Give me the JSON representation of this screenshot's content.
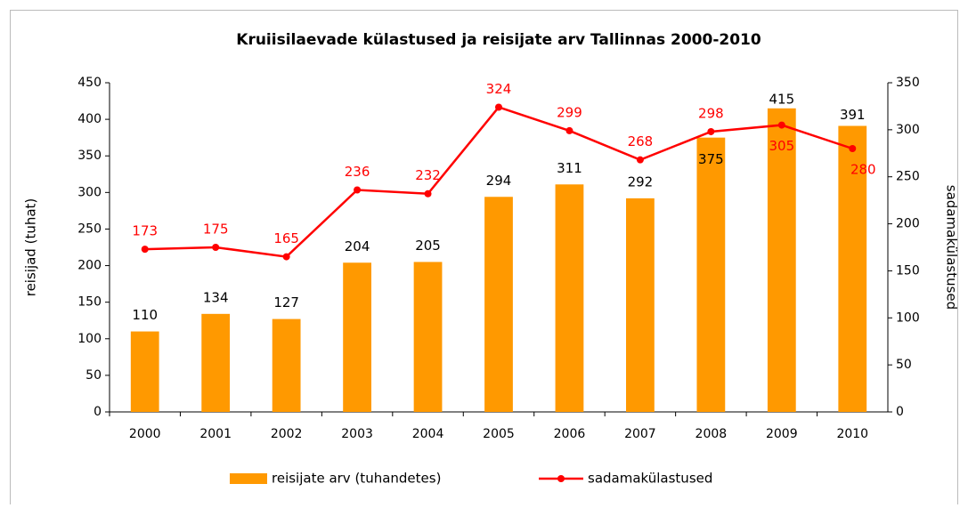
{
  "chart_data": {
    "type": "bar-line",
    "title": "Kruiisilaevade külastused ja reisijate arv Tallinnas 2000-2010",
    "categories": [
      "2000",
      "2001",
      "2002",
      "2003",
      "2004",
      "2005",
      "2006",
      "2007",
      "2008",
      "2009",
      "2010"
    ],
    "series": [
      {
        "name": "reisijate arv (tuhandetes)",
        "color": "#ff9900",
        "type": "bar",
        "axis": "y",
        "values": [
          110,
          134,
          127,
          204,
          205,
          294,
          311,
          292,
          375,
          415,
          391
        ]
      },
      {
        "name": "sadamakülastused",
        "color": "#ff0000",
        "type": "line",
        "axis": "y2",
        "values": [
          173,
          175,
          165,
          236,
          232,
          324,
          299,
          268,
          298,
          305,
          280
        ]
      }
    ],
    "y_label": "reisijad (tuhat)",
    "y2_label": "sadamakülastused",
    "ylim": [
      0,
      450
    ],
    "yticks": [
      0,
      50,
      100,
      150,
      200,
      250,
      300,
      350,
      400,
      450
    ],
    "y2lim": [
      0,
      350
    ],
    "y2ticks": [
      0,
      50,
      100,
      150,
      200,
      250,
      300,
      350
    ],
    "legend": "bottom"
  }
}
